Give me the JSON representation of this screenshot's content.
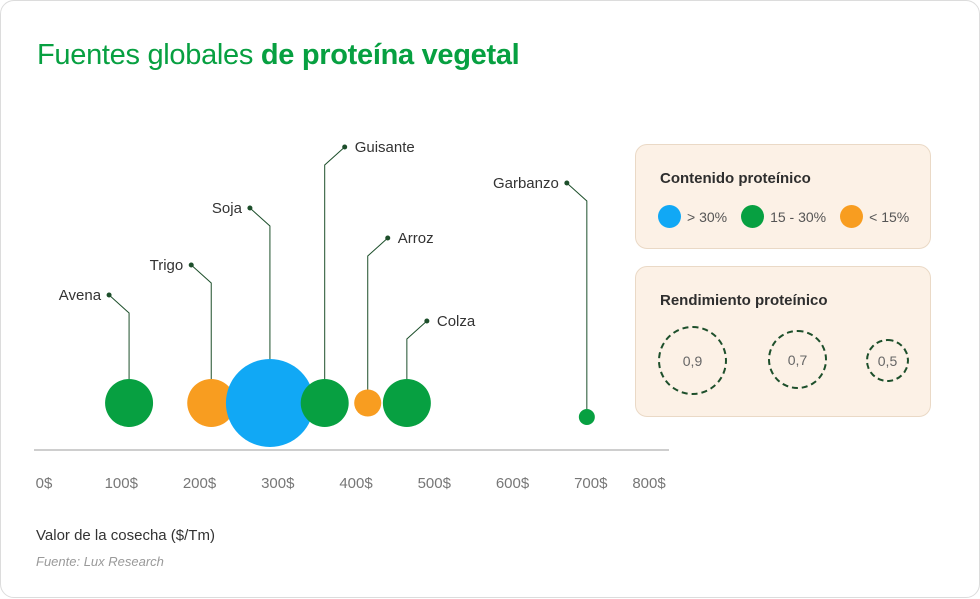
{
  "title": {
    "regular": "Fuentes globales",
    "bold": "de proteína vegetal"
  },
  "chart_data": {
    "type": "scatter",
    "title": "Fuentes globales de proteína vegetal",
    "xlabel": "Valor de la cosecha ($/Tm)",
    "xlim": [
      0,
      800
    ],
    "x_ticks": [
      "0$",
      "100$",
      "200$",
      "300$",
      "400$",
      "500$",
      "600$",
      "700$",
      "800$"
    ],
    "grid": false,
    "points": [
      {
        "label": "Avena",
        "x": 110,
        "protein": "15 - 30%",
        "yield": 0.7
      },
      {
        "label": "Trigo",
        "x": 215,
        "protein": "< 15%",
        "yield": 0.7
      },
      {
        "label": "Soja",
        "x": 290,
        "protein": "> 30%",
        "yield": 1.0
      },
      {
        "label": "Guisante",
        "x": 360,
        "protein": "15 - 30%",
        "yield": 0.7
      },
      {
        "label": "Arroz",
        "x": 415,
        "protein": "< 15%",
        "yield": 0.5
      },
      {
        "label": "Colza",
        "x": 465,
        "protein": "15 - 30%",
        "yield": 0.7
      },
      {
        "label": "Garbanzo",
        "x": 695,
        "protein": "15 - 30%",
        "yield": 0.3
      }
    ]
  },
  "legend_protein": {
    "title": "Contenido proteínico",
    "items": [
      {
        "label": "> 30%",
        "color": "#11a8f5"
      },
      {
        "label": "15 - 30%",
        "color": "#07a041"
      },
      {
        "label": "< 15%",
        "color": "#f89d20"
      }
    ]
  },
  "legend_yield": {
    "title": "Rendimiento proteínico",
    "items": [
      "0,9",
      "0,7",
      "0,5"
    ]
  },
  "source": "Fuente: Lux Research",
  "colors": {
    "title": "#07a041",
    "leader": "#1d4f2b",
    "axis": "#9e9e9e"
  }
}
